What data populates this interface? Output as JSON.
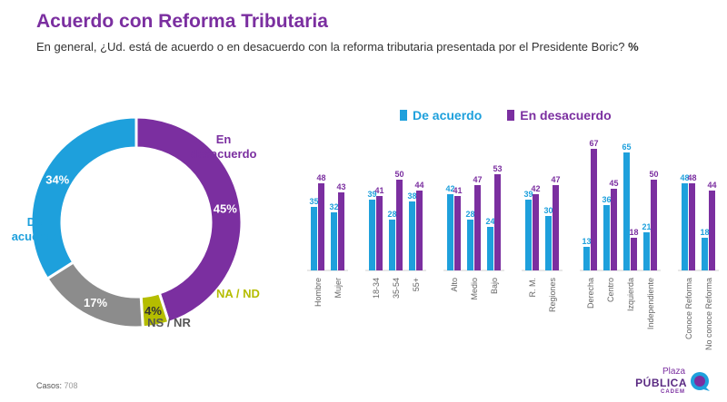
{
  "title": "Acuerdo con Reforma Tributaria",
  "subtitle": "En general, ¿Ud. está de acuerdo o en desacuerdo con la reforma tributaria presentada por el Presidente Boric?",
  "subtitle_unit": "%",
  "casos_label": "Casos:",
  "casos_value": "708",
  "logo": {
    "line1": "Plaza",
    "line2": "PÚBLICA",
    "line3": "CADEM"
  },
  "colors": {
    "acuerdo": "#1ea0dc",
    "desacuerdo": "#7b2fa0",
    "ns": "#8c8c8c",
    "na": "#b5bd00"
  },
  "chart_data": [
    {
      "type": "pie",
      "subtype": "donut",
      "slices": [
        {
          "label": "En desacuerdo",
          "value": 45,
          "display": "45%",
          "color": "#7b2fa0"
        },
        {
          "label": "NA / ND",
          "value": 4,
          "display": "4%",
          "color": "#b5bd00"
        },
        {
          "label": "NS / NR",
          "value": 17,
          "display": "17%",
          "color": "#8c8c8c"
        },
        {
          "label": "De acuerdo",
          "value": 34,
          "display": "34%",
          "color": "#1ea0dc"
        }
      ]
    },
    {
      "type": "bar",
      "legend": [
        "De acuerdo",
        "En desacuerdo"
      ],
      "legend_position": "top",
      "ylim": [
        0,
        70
      ],
      "categories": [
        "Hombre",
        "Mujer",
        "18-34",
        "35-54",
        "55+",
        "Alto",
        "Medio",
        "Bajo",
        "R. M.",
        "Regiones",
        "Derecha",
        "Centro",
        "Izquierda",
        "Independiente",
        "Conoce Reforma",
        "No conoce Reforma"
      ],
      "groups": [
        2,
        3,
        3,
        2,
        4,
        2
      ],
      "series": [
        {
          "name": "De acuerdo",
          "color": "#1ea0dc",
          "values": [
            35,
            32,
            39,
            28,
            38,
            42,
            28,
            24,
            39,
            30,
            13,
            36,
            65,
            21,
            48,
            18
          ]
        },
        {
          "name": "En desacuerdo",
          "color": "#7b2fa0",
          "values": [
            48,
            43,
            41,
            50,
            44,
            41,
            47,
            53,
            42,
            47,
            67,
            45,
            18,
            50,
            48,
            44
          ]
        }
      ]
    }
  ]
}
